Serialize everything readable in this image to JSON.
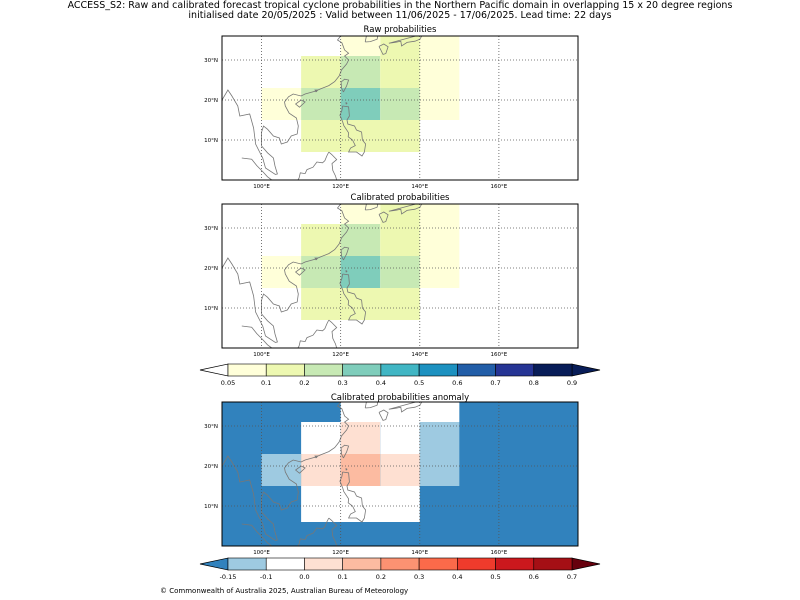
{
  "title_line1": "ACCESS_S2: Raw and calibrated forecast tropical cyclone probabilities in the Northern Pacific domain in overlapping 15 x 20 degree regions",
  "title_line2": "initialised date 20/05/2025 :  Valid between 11/06/2025 - 17/06/2025. Lead time: 22 days",
  "copyright": "© Commonwealth of Australia 2025, Australian Bureau of Meteorology",
  "chart_data": [
    {
      "type": "heatmap",
      "title": "Raw probabilities",
      "xlim": [
        90,
        180
      ],
      "ylim": [
        0,
        36
      ],
      "x_ticks": [
        {
          "value": 100,
          "label": "100°E"
        },
        {
          "value": 120,
          "label": "120°E"
        },
        {
          "value": 140,
          "label": "140°E"
        },
        {
          "value": 160,
          "label": "160°E"
        }
      ],
      "y_ticks": [
        {
          "value": 10,
          "label": "10°N"
        },
        {
          "value": 20,
          "label": "20°N"
        },
        {
          "value": 30,
          "label": "30°N"
        }
      ],
      "grid": true,
      "cells": [
        {
          "lon": [
            140,
            150
          ],
          "lat": [
            15,
            36
          ],
          "value": 0.07
        },
        {
          "lon": [
            130,
            140
          ],
          "lat": [
            31,
            36
          ],
          "value": 0.15
        },
        {
          "lon": [
            120,
            130
          ],
          "lat": [
            31,
            36
          ],
          "value": 0.07
        },
        {
          "lon": [
            110,
            120
          ],
          "lat": [
            23,
            31
          ],
          "value": 0.15
        },
        {
          "lon": [
            120,
            130
          ],
          "lat": [
            23,
            31
          ],
          "value": 0.25
        },
        {
          "lon": [
            130,
            140
          ],
          "lat": [
            23,
            31
          ],
          "value": 0.15
        },
        {
          "lon": [
            100,
            110
          ],
          "lat": [
            15,
            23
          ],
          "value": 0.07
        },
        {
          "lon": [
            110,
            120
          ],
          "lat": [
            15,
            23
          ],
          "value": 0.25
        },
        {
          "lon": [
            120,
            130
          ],
          "lat": [
            15,
            23
          ],
          "value": 0.35
        },
        {
          "lon": [
            130,
            140
          ],
          "lat": [
            15,
            23
          ],
          "value": 0.25
        },
        {
          "lon": [
            110,
            140
          ],
          "lat": [
            7,
            15
          ],
          "value": 0.15
        }
      ]
    },
    {
      "type": "heatmap",
      "title": "Calibrated probabilities",
      "xlim": [
        90,
        180
      ],
      "ylim": [
        0,
        36
      ],
      "x_ticks": [
        {
          "value": 100,
          "label": "100°E"
        },
        {
          "value": 120,
          "label": "120°E"
        },
        {
          "value": 140,
          "label": "140°E"
        },
        {
          "value": 160,
          "label": "160°E"
        }
      ],
      "y_ticks": [
        {
          "value": 10,
          "label": "10°N"
        },
        {
          "value": 20,
          "label": "20°N"
        },
        {
          "value": 30,
          "label": "30°N"
        }
      ],
      "grid": true,
      "cells": [
        {
          "lon": [
            140,
            150
          ],
          "lat": [
            15,
            36
          ],
          "value": 0.07
        },
        {
          "lon": [
            130,
            140
          ],
          "lat": [
            31,
            36
          ],
          "value": 0.15
        },
        {
          "lon": [
            120,
            130
          ],
          "lat": [
            31,
            36
          ],
          "value": 0.07
        },
        {
          "lon": [
            110,
            120
          ],
          "lat": [
            23,
            31
          ],
          "value": 0.15
        },
        {
          "lon": [
            120,
            130
          ],
          "lat": [
            23,
            31
          ],
          "value": 0.25
        },
        {
          "lon": [
            130,
            140
          ],
          "lat": [
            23,
            31
          ],
          "value": 0.15
        },
        {
          "lon": [
            100,
            110
          ],
          "lat": [
            15,
            23
          ],
          "value": 0.07
        },
        {
          "lon": [
            110,
            120
          ],
          "lat": [
            15,
            23
          ],
          "value": 0.25
        },
        {
          "lon": [
            120,
            130
          ],
          "lat": [
            15,
            23
          ],
          "value": 0.35
        },
        {
          "lon": [
            130,
            140
          ],
          "lat": [
            15,
            23
          ],
          "value": 0.25
        },
        {
          "lon": [
            110,
            140
          ],
          "lat": [
            7,
            15
          ],
          "value": 0.15
        }
      ]
    },
    {
      "type": "heatmap",
      "title": "Calibrated probabilities anomaly",
      "xlim": [
        90,
        180
      ],
      "ylim": [
        0,
        36
      ],
      "x_ticks": [
        {
          "value": 100,
          "label": "100°E"
        },
        {
          "value": 120,
          "label": "120°E"
        },
        {
          "value": 140,
          "label": "140°E"
        },
        {
          "value": 160,
          "label": "160°E"
        }
      ],
      "y_ticks": [
        {
          "value": 10,
          "label": "10°N"
        },
        {
          "value": 20,
          "label": "20°N"
        },
        {
          "value": 30,
          "label": "30°N"
        }
      ],
      "grid": true,
      "background_value": -0.2,
      "cells": [
        {
          "lon": [
            120,
            150
          ],
          "lat": [
            31,
            36
          ],
          "value": -0.05
        },
        {
          "lon": [
            110,
            120
          ],
          "lat": [
            23,
            31
          ],
          "value": -0.05
        },
        {
          "lon": [
            120,
            130
          ],
          "lat": [
            23,
            31
          ],
          "value": 0.05
        },
        {
          "lon": [
            130,
            140
          ],
          "lat": [
            23,
            31
          ],
          "value": -0.05
        },
        {
          "lon": [
            140,
            150
          ],
          "lat": [
            15,
            31
          ],
          "value": -0.12
        },
        {
          "lon": [
            100,
            110
          ],
          "lat": [
            15,
            23
          ],
          "value": -0.12
        },
        {
          "lon": [
            110,
            120
          ],
          "lat": [
            15,
            23
          ],
          "value": 0.05
        },
        {
          "lon": [
            120,
            130
          ],
          "lat": [
            15,
            23
          ],
          "value": 0.15
        },
        {
          "lon": [
            130,
            140
          ],
          "lat": [
            15,
            23
          ],
          "value": 0.05
        },
        {
          "lon": [
            110,
            140
          ],
          "lat": [
            6,
            15
          ],
          "value": -0.05
        }
      ]
    }
  ],
  "colorbars": {
    "probability": {
      "bounds": [
        0.05,
        0.1,
        0.2,
        0.3,
        0.4,
        0.5,
        0.6,
        0.7,
        0.8,
        0.9
      ],
      "labels": [
        "0.05",
        "0.1",
        "0.2",
        "0.3",
        "0.4",
        "0.5",
        "0.6",
        "0.7",
        "0.8",
        "0.9"
      ],
      "colors": [
        "#ffffd9",
        "#edf8b1",
        "#c7e9b4",
        "#7fcdbb",
        "#41b6c4",
        "#1d91c0",
        "#225ea8",
        "#253494",
        "#081d58"
      ],
      "under_color": "#ffffff",
      "over_color": "#081d58"
    },
    "anomaly": {
      "bounds": [
        -0.15,
        -0.1,
        0.0,
        0.1,
        0.2,
        0.3,
        0.4,
        0.5,
        0.6,
        0.7
      ],
      "labels": [
        "-0.15",
        "-0.1",
        "0.0",
        "0.1",
        "0.2",
        "0.3",
        "0.4",
        "0.5",
        "0.6",
        "0.7"
      ],
      "colors": [
        "#9ecae1",
        "#ffffff",
        "#fee0d2",
        "#fcbba1",
        "#fc9272",
        "#fb6a4a",
        "#ef3b2c",
        "#cb181d",
        "#a50f15"
      ],
      "under_color": "#3182bd",
      "over_color": "#67000d"
    }
  }
}
